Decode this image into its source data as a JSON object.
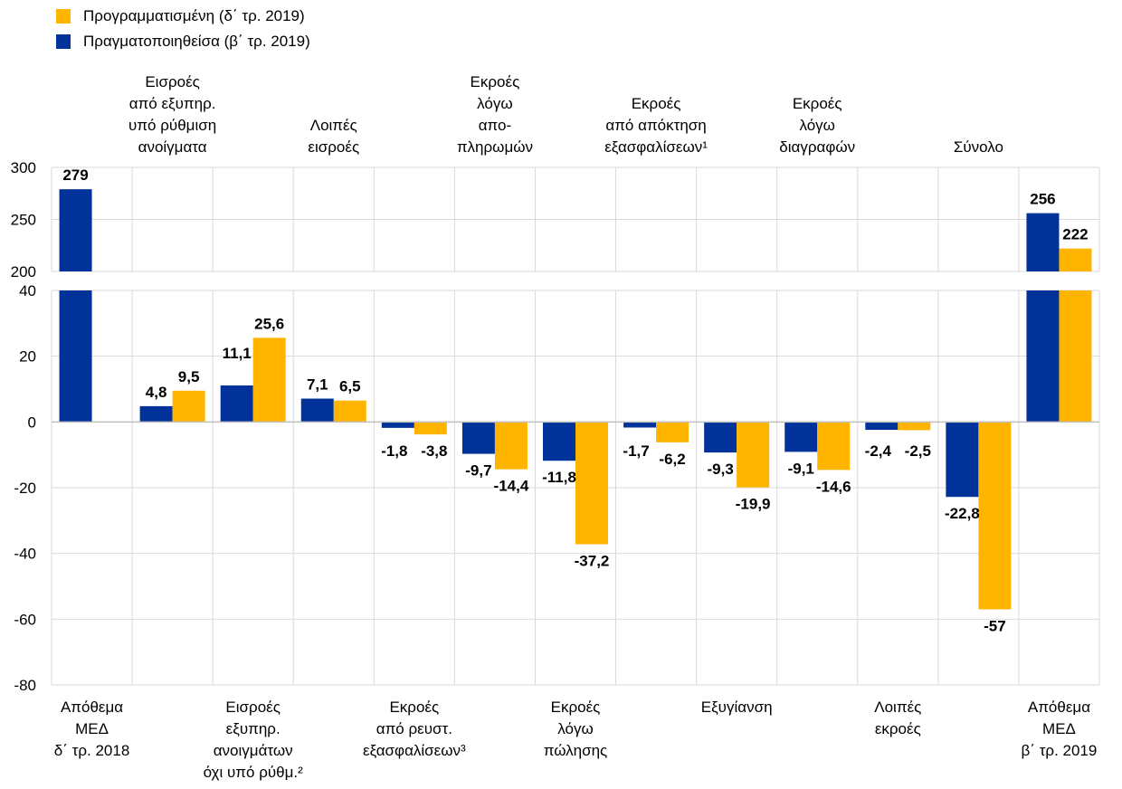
{
  "legend": {
    "items": [
      {
        "label": "Προγραμματισμένη (δ΄ τρ. 2019)",
        "color": "#FFB400"
      },
      {
        "label": "Πραγματοποιηθείσα (β΄ τρ. 2019)",
        "color": "#003299"
      }
    ]
  },
  "chart_data": {
    "type": "bar",
    "title": "",
    "xlabel": "",
    "ylabel": "",
    "categories": [
      "Απόθεμα ΜΕΔ δ΄ τρ. 2018",
      "Εισροές από εξυπηρ. υπό ρύθμιση ανοίγματα",
      "Εισροές εξυπηρ. ανοιγμάτων όχι υπό ρύθμ.²",
      "Λοιπές εισροές",
      "Εκροές από ρευστ. εξασφαλίσεων³",
      "Εκροές λόγω αποπληρωμών",
      "Εκροές λόγω πώλησης",
      "Εκροές από απόκτηση εξασφαλίσεων¹",
      "Εξυγίανση",
      "Εκροές λόγω διαγραφών",
      "Λοιπές εκροές",
      "Σύνολο",
      "Απόθεμα ΜΕΔ β΄ τρ. 2019"
    ],
    "category_lines": [
      {
        "lines": [
          "Απόθεμα",
          "ΜΕΔ",
          "δ΄ τρ. 2018"
        ],
        "position": "bottom"
      },
      {
        "lines": [
          "Εισροές",
          "από εξυπηρ.",
          "υπό ρύθμιση",
          "ανοίγματα"
        ],
        "position": "top"
      },
      {
        "lines": [
          "Εισροές",
          "εξυπηρ.",
          "ανοιγμάτων",
          "όχι υπό ρύθμ.²"
        ],
        "position": "bottom"
      },
      {
        "lines": [
          "Λοιπές",
          "εισροές"
        ],
        "position": "top"
      },
      {
        "lines": [
          "Εκροές",
          "από ρευστ.",
          "εξασφαλίσεων³"
        ],
        "position": "bottom"
      },
      {
        "lines": [
          "Εκροές",
          "λόγω",
          "απο-",
          "πληρωμών"
        ],
        "position": "top"
      },
      {
        "lines": [
          "Εκροές",
          "λόγω",
          "πώλησης"
        ],
        "position": "bottom"
      },
      {
        "lines": [
          "Εκροές",
          "από απόκτηση",
          "εξασφαλίσεων¹"
        ],
        "position": "top"
      },
      {
        "lines": [
          "Εξυγίανση"
        ],
        "position": "bottom"
      },
      {
        "lines": [
          "Εκροές",
          "λόγω",
          "διαγραφών"
        ],
        "position": "top"
      },
      {
        "lines": [
          "Λοιπές",
          "εκροές"
        ],
        "position": "bottom"
      },
      {
        "lines": [
          "Σύνολο"
        ],
        "position": "top"
      },
      {
        "lines": [
          "Απόθεμα",
          "ΜΕΔ",
          "β΄ τρ. 2019"
        ],
        "position": "bottom"
      }
    ],
    "series": [
      {
        "name": "Πραγματοποιηθείσα (β΄ τρ. 2019)",
        "color": "#003299",
        "values": [
          279,
          4.8,
          11.1,
          7.1,
          -1.8,
          -9.7,
          -11.8,
          -1.7,
          -9.3,
          -9.1,
          -2.4,
          -22.8,
          256
        ],
        "labels": [
          "279",
          "4,8",
          "11,1",
          "7,1",
          "-1,8",
          "-9,7",
          "-11,8",
          "-1,7",
          "-9,3",
          "-9,1",
          "-2,4",
          "-22,8",
          "256"
        ]
      },
      {
        "name": "Προγραμματισμένη (δ΄ τρ. 2019)",
        "color": "#FFB400",
        "values": [
          null,
          9.5,
          25.6,
          6.5,
          -3.8,
          -14.4,
          -37.2,
          -6.2,
          -19.9,
          -14.6,
          -2.5,
          -57,
          222
        ],
        "labels": [
          "",
          "9,5",
          "25,6",
          "6,5",
          "-3,8",
          "-14,4",
          "-37,2",
          "-6,2",
          "-19,9",
          "-14,6",
          "-2,5",
          "-57",
          "222"
        ]
      }
    ],
    "axes": {
      "upper": {
        "range": [
          200,
          300
        ],
        "ticks": [
          200,
          250,
          300
        ]
      },
      "lower": {
        "range": [
          -80,
          40
        ],
        "ticks": [
          -80,
          -60,
          -40,
          -20,
          0,
          20,
          40
        ]
      }
    },
    "grid": true,
    "legend_position": "top-left"
  }
}
